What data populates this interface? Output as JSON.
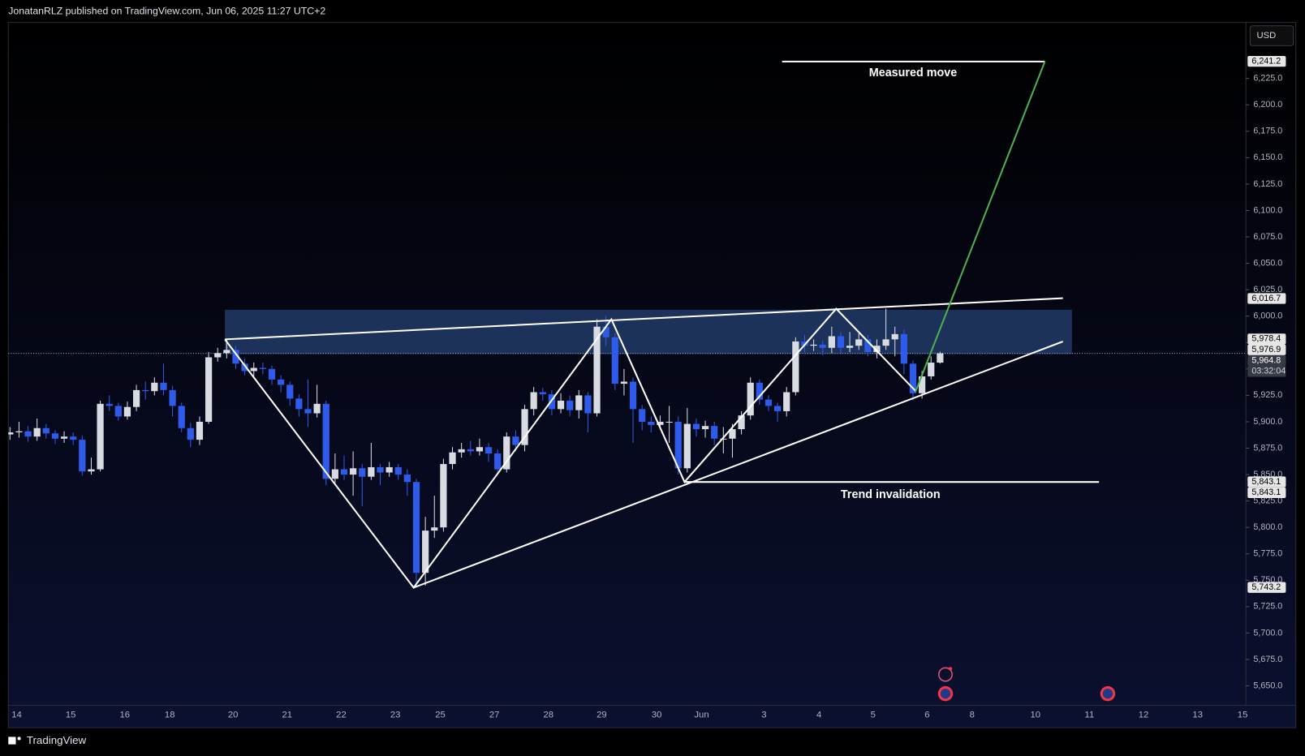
{
  "header": {
    "publisher": "JonatanRLZ published on TradingView.com, Jun 06, 2025 11:27 UTC+2",
    "currency": "USD",
    "brand": "TradingView"
  },
  "chart_data": {
    "type": "candlestick",
    "up_color": "#d9dbe3",
    "down_color": "#2f5bea",
    "ylim": [
      5634,
      6278
    ],
    "yticks": [
      {
        "value": 5650,
        "label": "5,650.0"
      },
      {
        "value": 5675,
        "label": "5,675.0"
      },
      {
        "value": 5700,
        "label": "5,700.0"
      },
      {
        "value": 5725,
        "label": "5,725.0"
      },
      {
        "value": 5750,
        "label": "5,750.0"
      },
      {
        "value": 5775,
        "label": "5,775.0"
      },
      {
        "value": 5800,
        "label": "5,800.0"
      },
      {
        "value": 5825,
        "label": "5,825.0"
      },
      {
        "value": 5850,
        "label": "5,850.0"
      },
      {
        "value": 5875,
        "label": "5,875.0"
      },
      {
        "value": 5900,
        "label": "5,900.0"
      },
      {
        "value": 5925,
        "label": "5,925.0"
      },
      {
        "value": 5950,
        "label": "5,950.0"
      },
      {
        "value": 5975,
        "label": "5,975.0"
      },
      {
        "value": 6000,
        "label": "6,000.0"
      },
      {
        "value": 6025,
        "label": "6,025.0"
      },
      {
        "value": 6050,
        "label": "6,050.0"
      },
      {
        "value": 6075,
        "label": "6,075.0"
      },
      {
        "value": 6100,
        "label": "6,100.0"
      },
      {
        "value": 6125,
        "label": "6,125.0"
      },
      {
        "value": 6150,
        "label": "6,150.0"
      },
      {
        "value": 6175,
        "label": "6,175.0"
      },
      {
        "value": 6200,
        "label": "6,200.0"
      },
      {
        "value": 6225,
        "label": "6,225.0"
      }
    ],
    "grid": false,
    "x_labels": [
      "14",
      "15",
      "16",
      "18",
      "20",
      "21",
      "22",
      "23",
      "25",
      "27",
      "28",
      "29",
      "30",
      "Jun",
      "3",
      "4",
      "5",
      "6",
      "8",
      "10",
      "11",
      "12",
      "13",
      "15"
    ],
    "open": [
      5888,
      5890,
      5891,
      5886,
      5894,
      5889,
      5884,
      5886,
      5883,
      5853,
      5855,
      5917,
      5915,
      5905,
      5914,
      5930,
      5929,
      5937,
      5930,
      5915,
      5894,
      5883,
      5900,
      5961,
      5965,
      5968,
      5955,
      5948,
      5951,
      5950,
      5940,
      5935,
      5922,
      5912,
      5908,
      5917,
      5846,
      5855,
      5850,
      5856,
      5848,
      5857,
      5852,
      5857,
      5850,
      5843,
      5757,
      5797,
      5800,
      5860,
      5871,
      5874,
      5872,
      5876,
      5870,
      5855,
      5886,
      5878,
      5912,
      5928,
      5926,
      5912,
      5920,
      5911,
      5925,
      5908,
      5990,
      5980,
      5936,
      5938,
      5912,
      5900,
      5897,
      5900,
      5900,
      5856,
      5898,
      5893,
      5896,
      5884,
      5884,
      5893,
      5906,
      5937,
      5921,
      5915,
      5910,
      5928,
      5976,
      5972,
      5973,
      5970,
      5981,
      5970,
      5972,
      5978,
      5966,
      5972,
      5978,
      5983,
      5955,
      5927,
      5943,
      5956
    ],
    "high": [
      5895,
      5900,
      5896,
      5903,
      5898,
      5892,
      5891,
      5890,
      5887,
      5866,
      5920,
      5925,
      5918,
      5919,
      5935,
      5938,
      5942,
      5955,
      5934,
      5918,
      5899,
      5905,
      5966,
      5970,
      5978,
      5972,
      5960,
      5956,
      5956,
      5953,
      5944,
      5938,
      5926,
      5940,
      5935,
      5920,
      5870,
      5868,
      5872,
      5860,
      5880,
      5860,
      5862,
      5860,
      5855,
      5846,
      5810,
      5830,
      5865,
      5876,
      5880,
      5882,
      5884,
      5880,
      5874,
      5890,
      5892,
      5916,
      5933,
      5932,
      5930,
      5927,
      5925,
      5930,
      5928,
      5997,
      6000,
      5984,
      5950,
      5942,
      5916,
      5905,
      5906,
      5915,
      5905,
      5913,
      5903,
      5901,
      5900,
      5895,
      5898,
      5910,
      5942,
      5940,
      5925,
      5918,
      5933,
      5980,
      5982,
      5978,
      5977,
      5990,
      5985,
      5985,
      5984,
      5982,
      5978,
      6007,
      5990,
      5987,
      5958,
      5948,
      5962,
      5966.3
    ],
    "low": [
      5883,
      5885,
      5881,
      5882,
      5884,
      5879,
      5880,
      5878,
      5849,
      5850,
      5853,
      5910,
      5901,
      5902,
      5910,
      5921,
      5925,
      5925,
      5905,
      5890,
      5876,
      5878,
      5898,
      5957,
      5960,
      5950,
      5944,
      5942,
      5945,
      5935,
      5928,
      5915,
      5905,
      5895,
      5904,
      5840,
      5842,
      5845,
      5830,
      5820,
      5845,
      5840,
      5848,
      5845,
      5830,
      5743,
      5745,
      5790,
      5796,
      5855,
      5866,
      5868,
      5868,
      5862,
      5850,
      5852,
      5872,
      5872,
      5906,
      5920,
      5906,
      5908,
      5905,
      5903,
      5890,
      5905,
      5972,
      5930,
      5925,
      5880,
      5892,
      5890,
      5893,
      5880,
      5850,
      5852,
      5886,
      5885,
      5878,
      5870,
      5866,
      5888,
      5902,
      5916,
      5910,
      5900,
      5905,
      5925,
      5966,
      5967,
      5963,
      5965,
      5964,
      5966,
      5968,
      5962,
      5960,
      5968,
      5962,
      5945,
      5920,
      5922,
      5940,
      5955
    ],
    "close": [
      5890,
      5891,
      5886,
      5894,
      5889,
      5884,
      5886,
      5883,
      5853,
      5855,
      5917,
      5915,
      5905,
      5914,
      5930,
      5929,
      5937,
      5930,
      5915,
      5894,
      5883,
      5900,
      5961,
      5965,
      5968,
      5955,
      5948,
      5951,
      5950,
      5940,
      5935,
      5922,
      5912,
      5908,
      5917,
      5846,
      5855,
      5850,
      5856,
      5848,
      5857,
      5852,
      5857,
      5850,
      5843,
      5757,
      5797,
      5800,
      5860,
      5871,
      5874,
      5872,
      5876,
      5870,
      5855,
      5886,
      5878,
      5912,
      5928,
      5926,
      5912,
      5920,
      5911,
      5925,
      5908,
      5990,
      5980,
      5936,
      5938,
      5912,
      5900,
      5897,
      5900,
      5900,
      5856,
      5898,
      5893,
      5896,
      5884,
      5884,
      5893,
      5906,
      5937,
      5921,
      5915,
      5910,
      5928,
      5976,
      5972,
      5973,
      5970,
      5981,
      5970,
      5972,
      5978,
      5966,
      5972,
      5978,
      5983,
      5955,
      5927,
      5943,
      5956,
      5964.8
    ],
    "last_price": 5964.8,
    "countdown": "03:32:04",
    "price_tags": [
      {
        "value": 6241.2,
        "label": "6,241.2"
      },
      {
        "value": 6016.7,
        "label": "6,016.7"
      },
      {
        "value": 5978.4,
        "label": "5,978.4"
      },
      {
        "value": 5976.9,
        "label": "5,976.9"
      },
      {
        "value": 5964.8,
        "label": "5,964.8"
      },
      {
        "value": 5843.1,
        "label": "5,843.1"
      },
      {
        "value": 5843.1,
        "label": "5,843.1"
      },
      {
        "value": 5743.2,
        "label": "5,743.2"
      }
    ],
    "zone": {
      "bars": [
        23.8,
        117.6
      ],
      "prices": [
        5964,
        6006
      ],
      "color": "#2a4a80"
    },
    "lines": [
      {
        "bars": [
          23.8,
          44.7,
          66.6,
          74.7,
          91.5,
          100.3
        ],
        "prices": [
          5978,
          5743,
          5997,
          5843,
          6007,
          5929
        ],
        "color": "#ffffff"
      },
      {
        "bars": [
          23.8,
          116.6
        ],
        "prices": [
          5978,
          6017
        ],
        "color": "#ffffff"
      },
      {
        "bars": [
          44.7,
          116.6
        ],
        "prices": [
          5743,
          5976
        ],
        "color": "#ffffff"
      },
      {
        "bars": [
          74.7,
          120.6
        ],
        "prices": [
          5843,
          5843
        ],
        "color": "#ffffff"
      },
      {
        "bars": [
          85.5,
          114.6
        ],
        "prices": [
          6241,
          6241
        ],
        "color": "#ffffff"
      },
      {
        "bars": [
          100.3,
          114.6
        ],
        "prices": [
          5929,
          6241
        ],
        "color": "#4caf50"
      }
    ],
    "annotations": [
      "Measured move",
      "Trend invalidation"
    ]
  }
}
